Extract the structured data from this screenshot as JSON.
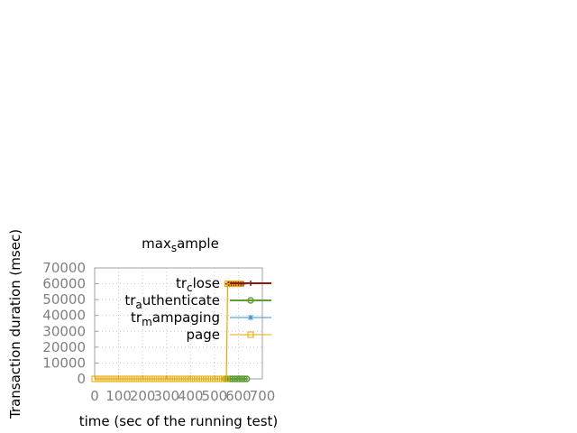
{
  "chart_data": {
    "type": "line",
    "title": {
      "base": "max",
      "sub": "s",
      "rest": "ample"
    },
    "xlabel": "time (sec of the running test)",
    "ylabel": "Transaction duration (msec)",
    "xlim": [
      0,
      700
    ],
    "ylim": [
      0,
      70000
    ],
    "x_ticks": [
      "0",
      "100",
      "200",
      "300",
      "400",
      "500",
      "600",
      "700"
    ],
    "y_ticks": [
      "0",
      "10000",
      "20000",
      "30000",
      "40000",
      "50000",
      "60000",
      "70000"
    ],
    "grid": true,
    "legend_position": "top-right",
    "series": [
      {
        "name": {
          "base": "tr",
          "sub": "c",
          "rest": "lose"
        },
        "color": "#8b1a0e",
        "marker": "plus",
        "points": [
          [
            555,
            60000
          ],
          [
            560,
            60000
          ],
          [
            570,
            60000
          ],
          [
            580,
            60000
          ],
          [
            590,
            60000
          ],
          [
            600,
            60000
          ],
          [
            610,
            60000
          ],
          [
            620,
            60000
          ]
        ]
      },
      {
        "name": {
          "base": "tr",
          "sub": "a",
          "rest": "uthenticate"
        },
        "color": "#5e9c36",
        "marker": "circle",
        "points": [
          [
            545,
            0
          ],
          [
            555,
            0
          ],
          [
            565,
            0
          ],
          [
            575,
            0
          ],
          [
            585,
            0
          ],
          [
            595,
            0
          ],
          [
            605,
            0
          ],
          [
            615,
            0
          ],
          [
            625,
            0
          ],
          [
            635,
            0
          ]
        ]
      },
      {
        "name": {
          "base": "tr",
          "sub": "m",
          "rest": "ampaging"
        },
        "color": "#3a8fcc",
        "marker": "star",
        "points": []
      },
      {
        "name": {
          "base": "page",
          "sub": "",
          "rest": ""
        },
        "color": "#e6a800",
        "marker": "square",
        "points": [
          [
            0,
            0
          ],
          [
            15,
            0
          ],
          [
            30,
            0
          ],
          [
            45,
            0
          ],
          [
            60,
            0
          ],
          [
            75,
            0
          ],
          [
            90,
            0
          ],
          [
            105,
            0
          ],
          [
            120,
            0
          ],
          [
            135,
            0
          ],
          [
            150,
            0
          ],
          [
            165,
            0
          ],
          [
            180,
            0
          ],
          [
            195,
            0
          ],
          [
            210,
            0
          ],
          [
            225,
            0
          ],
          [
            240,
            0
          ],
          [
            255,
            0
          ],
          [
            270,
            0
          ],
          [
            285,
            0
          ],
          [
            300,
            0
          ],
          [
            315,
            0
          ],
          [
            330,
            0
          ],
          [
            345,
            0
          ],
          [
            360,
            0
          ],
          [
            375,
            0
          ],
          [
            390,
            0
          ],
          [
            405,
            0
          ],
          [
            420,
            0
          ],
          [
            435,
            0
          ],
          [
            450,
            0
          ],
          [
            465,
            0
          ],
          [
            480,
            0
          ],
          [
            495,
            0
          ],
          [
            510,
            0
          ],
          [
            525,
            0
          ],
          [
            540,
            0
          ],
          [
            550,
            0
          ],
          [
            555,
            60000
          ],
          [
            565,
            60000
          ],
          [
            575,
            60000
          ],
          [
            585,
            60000
          ],
          [
            595,
            60000
          ],
          [
            605,
            60000
          ]
        ]
      }
    ]
  }
}
